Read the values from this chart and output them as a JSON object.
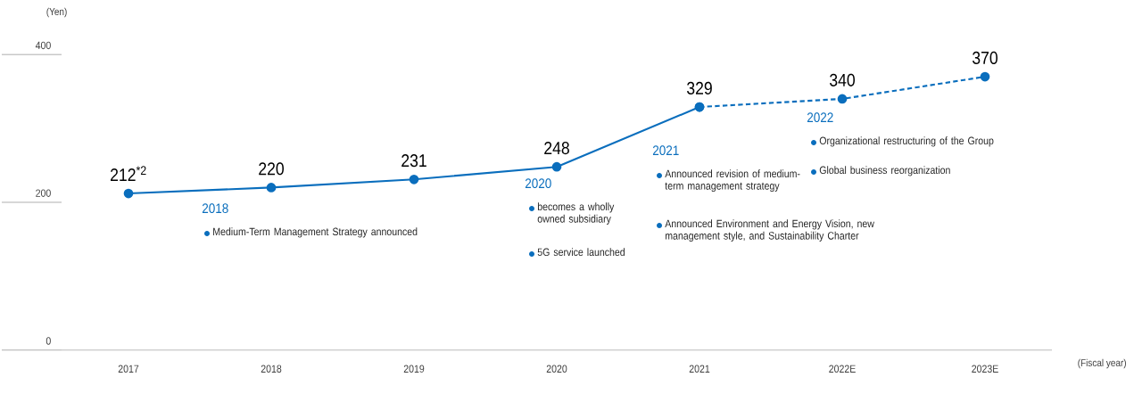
{
  "chart_data": {
    "type": "line",
    "ylabel": "(Yen)",
    "xlabel": "(Fiscal year)",
    "categories": [
      "2017",
      "2018",
      "2019",
      "2020",
      "2021",
      "2022E",
      "2023E"
    ],
    "series": [
      {
        "color": "#0a6ebd",
        "line_style": "solid",
        "values": [
          212,
          220,
          231,
          248,
          329,
          null,
          null
        ],
        "value_labels": [
          "212$^{*2}$",
          "220",
          "231",
          "248",
          "329",
          null,
          null
        ]
      },
      {
        "color": "#0a6ebd",
        "line_style": "dashed",
        "values": [
          null,
          null,
          null,
          null,
          329,
          340,
          370
        ],
        "value_labels": [
          null,
          null,
          null,
          null,
          null,
          "340",
          "370"
        ]
      }
    ],
    "marker": "circle",
    "ylim": [
      0,
      400
    ],
    "yticks": [
      0,
      200,
      400
    ],
    "annotations": [
      "2018",
      "Medium-Term Management Strategy announced",
      "2020",
      "becomes a wholly owned subsidiary",
      "5G service launched",
      "2021",
      "Announced revision of medium-term management strategy",
      "Announced Environment and Energy Vision, new management style, and Sustainability Charter",
      "2022",
      "Organizational restructuring of the Group",
      "Global business reorganization"
    ]
  }
}
